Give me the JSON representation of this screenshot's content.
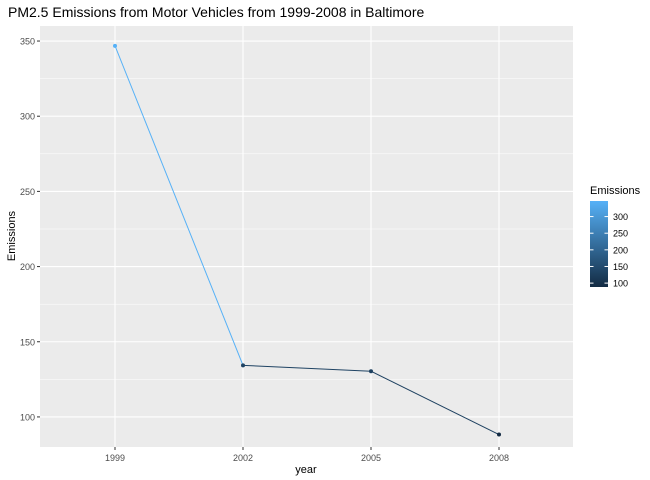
{
  "chart_data": {
    "type": "line",
    "title": "PM2.5 Emissions from Motor Vehicles from 1999-2008 in Baltimore",
    "xlabel": "year",
    "ylabel": "Emissions",
    "x": [
      "1999",
      "2002",
      "2005",
      "2008"
    ],
    "series": [
      {
        "values": [
          346.8,
          134.3,
          130.4,
          88.3
        ]
      }
    ],
    "ylim": [
      80,
      360
    ],
    "y_ticks": [
      100,
      150,
      200,
      250,
      300,
      350
    ],
    "grid": true,
    "colorbar": {
      "title": "Emissions",
      "range": [
        88.3,
        346.8
      ],
      "ticks": [
        100,
        150,
        200,
        250,
        300
      ],
      "low_color": "#132B43",
      "high_color": "#56B1F7",
      "placement": "right"
    },
    "panel_color": "#EBEBEB"
  }
}
